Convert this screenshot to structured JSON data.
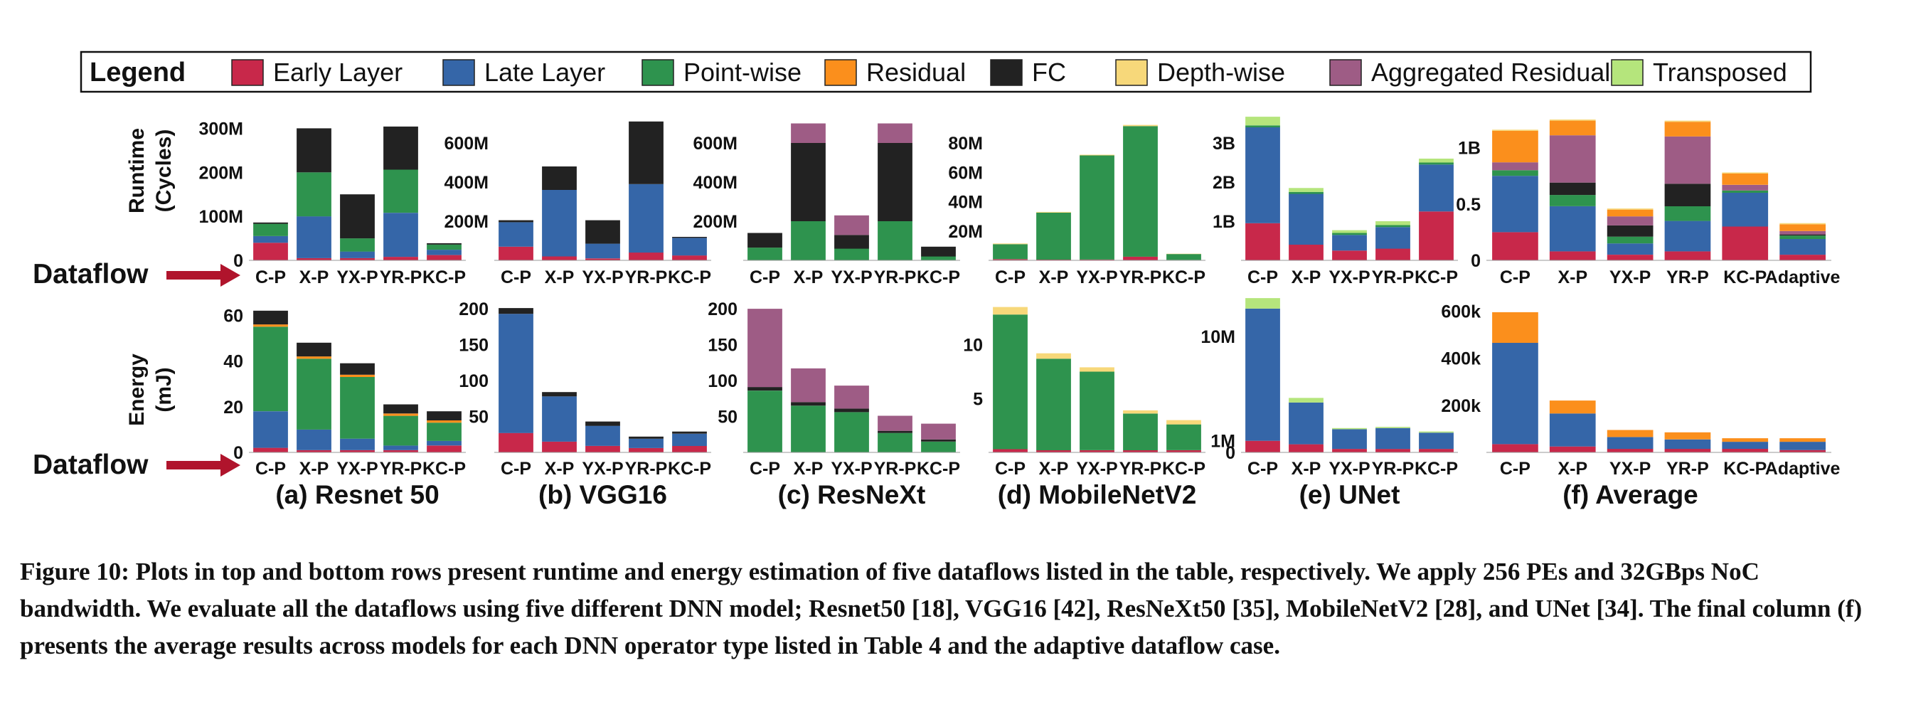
{
  "legend": {
    "title": "Legend",
    "items": [
      {
        "key": "early",
        "label": "Early Layer",
        "color": "#c8284a"
      },
      {
        "key": "late",
        "label": "Late Layer",
        "color": "#3566a8"
      },
      {
        "key": "point",
        "label": "Point-wise",
        "color": "#2e934e"
      },
      {
        "key": "resid",
        "label": "Residual",
        "color": "#fb8f1c"
      },
      {
        "key": "fc",
        "label": "FC",
        "color": "#222222"
      },
      {
        "key": "depth",
        "label": "Depth-wise",
        "color": "#f7d87a"
      },
      {
        "key": "agg",
        "label": "Aggregated Residual",
        "color": "#9e5c85"
      },
      {
        "key": "trans",
        "label": "Transposed",
        "color": "#b5e57c"
      }
    ]
  },
  "labels": {
    "runtime_axis": [
      "Runtime",
      "(Cycles)"
    ],
    "energy_axis": [
      "Energy",
      "(mJ)"
    ],
    "dataflow": "Dataflow"
  },
  "caption": {
    "label": "Figure 10:",
    "text": "Plots in top and bottom rows present runtime and energy estimation of five dataflows listed in the table, respectively. We apply 256 PEs and 32GBps NoC bandwidth. We evaluate all the dataflows using five different DNN model; Resnet50 [18], VGG16 [42], ResNeXt50 [35], MobileNetV2 [28], and UNet [34]. The final column (f) presents the average results across models for each DNN operator type listed in Table 4 and the adaptive dataflow case."
  },
  "chart_data": [
    {
      "type": "bar",
      "stacked": true,
      "row": "runtime",
      "panel": 0,
      "title": "",
      "categories": [
        "C-P",
        "X-P",
        "YX-P",
        "YR-P",
        "KC-P"
      ],
      "yticks": [
        {
          "v": 0,
          "label": "0"
        },
        {
          "v": 100,
          "label": "100M"
        },
        {
          "v": 200,
          "label": "200M"
        },
        {
          "v": 300,
          "label": "300M"
        }
      ],
      "ylim": [
        0,
        320
      ],
      "series": [
        {
          "key": "early",
          "values": [
            40,
            5,
            5,
            8,
            12
          ]
        },
        {
          "key": "late",
          "values": [
            15,
            95,
            15,
            100,
            12
          ]
        },
        {
          "key": "point",
          "values": [
            28,
            100,
            30,
            98,
            12
          ]
        },
        {
          "key": "fc",
          "values": [
            3,
            100,
            100,
            98,
            3
          ]
        }
      ]
    },
    {
      "type": "bar",
      "stacked": true,
      "row": "runtime",
      "panel": 1,
      "title": "",
      "categories": [
        "C-P",
        "X-P",
        "YX-P",
        "YR-P",
        "KC-P"
      ],
      "yticks": [
        {
          "v": 0,
          "label": ""
        },
        {
          "v": 200,
          "label": "200M"
        },
        {
          "v": 400,
          "label": "400M"
        },
        {
          "v": 600,
          "label": "600M"
        }
      ],
      "ylim": [
        0,
        720
      ],
      "series": [
        {
          "key": "early",
          "values": [
            70,
            20,
            10,
            40,
            25
          ]
        },
        {
          "key": "late",
          "values": [
            125,
            340,
            75,
            350,
            90
          ]
        },
        {
          "key": "fc",
          "values": [
            10,
            120,
            120,
            320,
            5
          ]
        }
      ]
    },
    {
      "type": "bar",
      "stacked": true,
      "row": "runtime",
      "panel": 2,
      "title": "",
      "categories": [
        "C-P",
        "X-P",
        "YX-P",
        "YR-P",
        "KC-P"
      ],
      "yticks": [
        {
          "v": 0,
          "label": ""
        },
        {
          "v": 200,
          "label": "200M"
        },
        {
          "v": 400,
          "label": "400M"
        },
        {
          "v": 600,
          "label": "600M"
        }
      ],
      "ylim": [
        0,
        720
      ],
      "series": [
        {
          "key": "point",
          "values": [
            65,
            200,
            60,
            200,
            20
          ]
        },
        {
          "key": "fc",
          "values": [
            75,
            400,
            70,
            400,
            50
          ]
        },
        {
          "key": "agg",
          "values": [
            0,
            100,
            100,
            100,
            0
          ]
        }
      ]
    },
    {
      "type": "bar",
      "stacked": true,
      "row": "runtime",
      "panel": 3,
      "title": "",
      "categories": [
        "C-P",
        "X-P",
        "YX-P",
        "YR-P",
        "KC-P"
      ],
      "yticks": [
        {
          "v": 0,
          "label": ""
        },
        {
          "v": 20,
          "label": "20M"
        },
        {
          "v": 40,
          "label": "40M"
        },
        {
          "v": 60,
          "label": "60M"
        },
        {
          "v": 80,
          "label": "80M"
        }
      ],
      "ylim": [
        0,
        96
      ],
      "series": [
        {
          "key": "early",
          "values": [
            0.8,
            0.5,
            0.5,
            2.5,
            0.3
          ]
        },
        {
          "key": "point",
          "values": [
            10.2,
            32,
            71,
            89,
            4
          ]
        },
        {
          "key": "depth",
          "values": [
            0.5,
            0.5,
            0.5,
            0.8,
            0.2
          ]
        }
      ]
    },
    {
      "type": "bar",
      "stacked": true,
      "row": "runtime",
      "panel": 4,
      "title": "",
      "categories": [
        "C-P",
        "X-P",
        "YX-P",
        "YR-P",
        "KC-P"
      ],
      "yticks": [
        {
          "v": 0,
          "label": ""
        },
        {
          "v": 1,
          "label": "1B"
        },
        {
          "v": 2,
          "label": "2B"
        },
        {
          "v": 3,
          "label": "3B"
        }
      ],
      "ylim": [
        0,
        3.6
      ],
      "series": [
        {
          "key": "early",
          "values": [
            0.95,
            0.4,
            0.25,
            0.3,
            1.25
          ]
        },
        {
          "key": "late",
          "values": [
            2.45,
            1.3,
            0.4,
            0.55,
            1.2
          ]
        },
        {
          "key": "point",
          "values": [
            0.05,
            0.05,
            0.05,
            0.05,
            0.05
          ]
        },
        {
          "key": "trans",
          "values": [
            0.22,
            0.1,
            0.07,
            0.1,
            0.1
          ]
        }
      ]
    },
    {
      "type": "bar",
      "stacked": true,
      "row": "runtime",
      "panel": 5,
      "title": "",
      "categories": [
        "C-P",
        "X-P",
        "YX-P",
        "YR-P",
        "KC-P",
        "Adaptive"
      ],
      "yticks": [
        {
          "v": 0,
          "label": "0"
        },
        {
          "v": 0.5,
          "label": "0.5"
        },
        {
          "v": 1,
          "label": "1B"
        }
      ],
      "ylim": [
        0,
        1.25
      ],
      "series": [
        {
          "key": "early",
          "values": [
            0.25,
            0.08,
            0.05,
            0.08,
            0.3,
            0.05
          ]
        },
        {
          "key": "late",
          "values": [
            0.5,
            0.4,
            0.1,
            0.27,
            0.3,
            0.14
          ]
        },
        {
          "key": "point",
          "values": [
            0.05,
            0.1,
            0.06,
            0.13,
            0.02,
            0.03
          ]
        },
        {
          "key": "fc",
          "values": [
            0,
            0.11,
            0.1,
            0.2,
            0,
            0.01
          ]
        },
        {
          "key": "agg",
          "values": [
            0.07,
            0.42,
            0.08,
            0.42,
            0.05,
            0.03
          ]
        },
        {
          "key": "resid",
          "values": [
            0.28,
            0.13,
            0.06,
            0.13,
            0.1,
            0.06
          ]
        },
        {
          "key": "depth",
          "values": [
            0.01,
            0.01,
            0.01,
            0.01,
            0.01,
            0.01
          ]
        }
      ]
    },
    {
      "type": "bar",
      "stacked": true,
      "row": "energy",
      "panel": 0,
      "title": "(a) Resnet 50",
      "categories": [
        "C-P",
        "X-P",
        "YX-P",
        "YR-P",
        "KC-P"
      ],
      "yticks": [
        {
          "v": 0,
          "label": "0"
        },
        {
          "v": 20,
          "label": "20"
        },
        {
          "v": 40,
          "label": "40"
        },
        {
          "v": 60,
          "label": "60"
        }
      ],
      "ylim": [
        0,
        66
      ],
      "series": [
        {
          "key": "early",
          "values": [
            2,
            1,
            1,
            1,
            3
          ]
        },
        {
          "key": "late",
          "values": [
            16,
            9,
            5,
            2,
            2
          ]
        },
        {
          "key": "point",
          "values": [
            37,
            31,
            27,
            13,
            8
          ]
        },
        {
          "key": "resid",
          "values": [
            1,
            1,
            1,
            1,
            1
          ]
        },
        {
          "key": "fc",
          "values": [
            6,
            6,
            5,
            4,
            4
          ]
        }
      ]
    },
    {
      "type": "bar",
      "stacked": true,
      "row": "energy",
      "panel": 1,
      "title": "(b) VGG16",
      "categories": [
        "C-P",
        "X-P",
        "YX-P",
        "YR-P",
        "KC-P"
      ],
      "yticks": [
        {
          "v": 0,
          "label": ""
        },
        {
          "v": 50,
          "label": "50"
        },
        {
          "v": 100,
          "label": "100"
        },
        {
          "v": 150,
          "label": "150"
        },
        {
          "v": 200,
          "label": "200"
        }
      ],
      "ylim": [
        0,
        210
      ],
      "series": [
        {
          "key": "early",
          "values": [
            27,
            15,
            9,
            6,
            9
          ]
        },
        {
          "key": "late",
          "values": [
            166,
            63,
            28,
            13,
            17
          ]
        },
        {
          "key": "fc",
          "values": [
            8,
            6,
            6,
            3,
            3
          ]
        }
      ]
    },
    {
      "type": "bar",
      "stacked": true,
      "row": "energy",
      "panel": 2,
      "title": "(c) ResNeXt",
      "categories": [
        "C-P",
        "X-P",
        "YX-P",
        "YR-P",
        "KC-P"
      ],
      "yticks": [
        {
          "v": 0,
          "label": ""
        },
        {
          "v": 50,
          "label": "50"
        },
        {
          "v": 100,
          "label": "100"
        },
        {
          "v": 150,
          "label": "150"
        },
        {
          "v": 200,
          "label": "200"
        }
      ],
      "ylim": [
        0,
        210
      ],
      "series": [
        {
          "key": "point",
          "values": [
            86,
            65,
            56,
            27,
            15
          ]
        },
        {
          "key": "fc",
          "values": [
            5,
            5,
            5,
            3,
            3
          ]
        },
        {
          "key": "agg",
          "values": [
            109,
            47,
            32,
            21,
            22
          ]
        }
      ]
    },
    {
      "type": "bar",
      "stacked": true,
      "row": "energy",
      "panel": 3,
      "title": "(d) MobileNetV2",
      "categories": [
        "C-P",
        "X-P",
        "YX-P",
        "YR-P",
        "KC-P"
      ],
      "yticks": [
        {
          "v": 0,
          "label": ""
        },
        {
          "v": 5,
          "label": "5"
        },
        {
          "v": 10,
          "label": "10"
        }
      ],
      "ylim": [
        0,
        14
      ],
      "series": [
        {
          "key": "early",
          "values": [
            0.3,
            0.2,
            0.2,
            0.2,
            0.2
          ]
        },
        {
          "key": "point",
          "values": [
            12.5,
            8.5,
            7.3,
            3.4,
            2.4
          ]
        },
        {
          "key": "depth",
          "values": [
            0.7,
            0.5,
            0.4,
            0.3,
            0.4
          ]
        }
      ]
    },
    {
      "type": "bar",
      "stacked": true,
      "row": "energy",
      "panel": 4,
      "title": "(e) UNet",
      "categories": [
        "C-P",
        "X-P",
        "YX-P",
        "YR-P",
        "KC-P"
      ],
      "yticks": [
        {
          "v": 0,
          "label": "0"
        },
        {
          "v": 1,
          "label": "1M"
        },
        {
          "v": 10,
          "label": "10M"
        }
      ],
      "ylim": [
        0,
        13
      ],
      "series": [
        {
          "key": "early",
          "values": [
            1,
            0.7,
            0.3,
            0.3,
            0.3
          ]
        },
        {
          "key": "late",
          "values": [
            11.4,
            3.6,
            1.7,
            1.8,
            1.4
          ]
        },
        {
          "key": "trans",
          "values": [
            0.9,
            0.4,
            0.1,
            0.1,
            0.1
          ]
        }
      ]
    },
    {
      "type": "bar",
      "stacked": true,
      "row": "energy",
      "panel": 5,
      "title": "(f) Average",
      "categories": [
        "C-P",
        "X-P",
        "YX-P",
        "YR-P",
        "KC-P",
        "Adaptive"
      ],
      "yticks": [
        {
          "v": 0,
          "label": ""
        },
        {
          "v": 200,
          "label": "200k"
        },
        {
          "v": 400,
          "label": "400k"
        },
        {
          "v": 600,
          "label": "600k"
        }
      ],
      "ylim": [
        0,
        640
      ],
      "series": [
        {
          "key": "early",
          "values": [
            35,
            25,
            15,
            15,
            15,
            10
          ]
        },
        {
          "key": "late",
          "values": [
            430,
            140,
            50,
            40,
            30,
            35
          ]
        },
        {
          "key": "point",
          "values": [
            0,
            0,
            0,
            0,
            0,
            0
          ]
        },
        {
          "key": "resid",
          "values": [
            130,
            55,
            30,
            30,
            15,
            15
          ]
        }
      ]
    }
  ]
}
